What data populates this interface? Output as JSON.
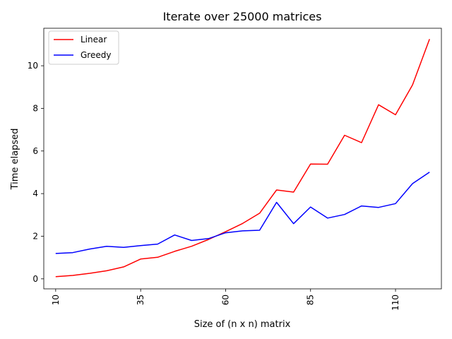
{
  "chart_data": {
    "type": "line",
    "title": "Iterate over 25000 matrices",
    "xlabel": "Size of (n x n) matrix",
    "ylabel": "Time elapsed",
    "x": [
      10,
      15,
      20,
      25,
      30,
      35,
      40,
      45,
      50,
      55,
      60,
      65,
      70,
      75,
      80,
      85,
      90,
      95,
      100,
      105,
      110,
      115,
      120
    ],
    "xticks": [
      "10",
      "35",
      "60",
      "85",
      "110"
    ],
    "xtick_values": [
      10,
      35,
      60,
      85,
      110
    ],
    "yticks": [
      "0",
      "2",
      "4",
      "6",
      "8",
      "10"
    ],
    "ytick_values": [
      0,
      2,
      4,
      6,
      8,
      10
    ],
    "xlim": [
      6.5,
      123.5
    ],
    "ylim": [
      -0.47,
      11.76
    ],
    "grid": false,
    "legend_position": "top-left",
    "series": [
      {
        "name": "Linear",
        "color": "#ff0000",
        "values": [
          0.1,
          0.16,
          0.26,
          0.38,
          0.56,
          0.93,
          1.01,
          1.29,
          1.53,
          1.85,
          2.21,
          2.6,
          3.08,
          4.17,
          4.07,
          5.39,
          5.38,
          6.74,
          6.39,
          8.17,
          7.7,
          9.1,
          11.25
        ]
      },
      {
        "name": "Greedy",
        "color": "#0000ff",
        "values": [
          1.19,
          1.23,
          1.4,
          1.53,
          1.48,
          1.56,
          1.63,
          2.06,
          1.8,
          1.89,
          2.16,
          2.25,
          2.28,
          3.59,
          2.59,
          3.37,
          2.85,
          3.02,
          3.42,
          3.35,
          3.53,
          4.47,
          5.01
        ]
      }
    ]
  }
}
